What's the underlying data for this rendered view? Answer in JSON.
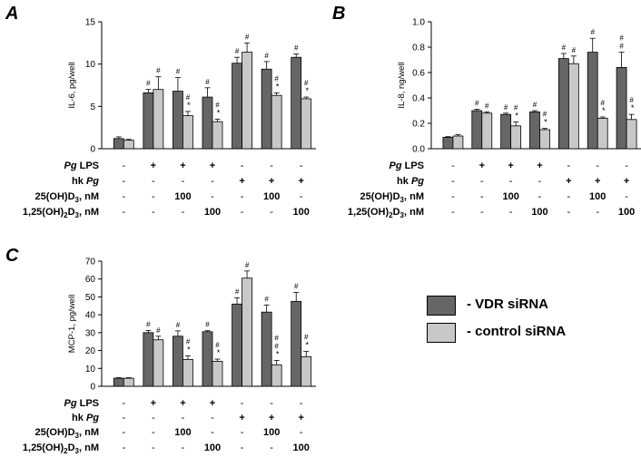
{
  "figure": {
    "legend": {
      "entries": [
        {
          "label": "- VDR siRNA",
          "color": "#666666"
        },
        {
          "label": "- control siRNA",
          "color": "#c8c8c8"
        }
      ]
    },
    "colors": {
      "vdr": "#666666",
      "control": "#c8c8c8",
      "axis": "#000000"
    }
  },
  "chart_data": [
    {
      "panel": "A",
      "type": "bar",
      "ylabel": "IL-6, pg/well",
      "ylim": [
        0,
        15
      ],
      "yticks": [
        "0",
        "5",
        "10",
        "15"
      ],
      "groups": 7,
      "series": [
        {
          "name": "VDR siRNA",
          "values": [
            1.2,
            6.6,
            6.8,
            6.1,
            10.1,
            9.4,
            10.8
          ],
          "errors": [
            0.2,
            0.4,
            1.6,
            1.1,
            0.7,
            0.9,
            0.4
          ]
        },
        {
          "name": "control siRNA",
          "values": [
            1.0,
            7.0,
            3.9,
            3.2,
            11.4,
            6.3,
            5.9
          ],
          "errors": [
            0.1,
            1.5,
            0.5,
            0.3,
            1.1,
            0.3,
            0.2
          ]
        }
      ],
      "annotations": {
        "vdr": [
          "",
          "#",
          "#",
          "#",
          "#",
          "#",
          "#"
        ],
        "control": [
          "",
          "#",
          "#\n*",
          "#\n*",
          "#",
          "#\n*",
          "#\n*"
        ]
      },
      "treatments": [
        {
          "label": "Pg LPS",
          "values": [
            "-",
            "+",
            "+",
            "+",
            "-",
            "-",
            "-"
          ]
        },
        {
          "label": "hk Pg",
          "values": [
            "-",
            "-",
            "-",
            "-",
            "+",
            "+",
            "+"
          ]
        },
        {
          "label": "25(OH)D3, nM",
          "values": [
            "-",
            "-",
            "100",
            "-",
            "-",
            "100",
            "-"
          ]
        },
        {
          "label": "1,25(OH)2D3, nM",
          "values": [
            "-",
            "-",
            "-",
            "100",
            "-",
            "-",
            "100"
          ]
        }
      ]
    },
    {
      "panel": "B",
      "type": "bar",
      "ylabel": "IL-8, ng/well",
      "ylim": [
        0,
        1.0
      ],
      "yticks": [
        "0.0",
        "0.2",
        "0.4",
        "0.6",
        "0.8",
        "1.0"
      ],
      "groups": 7,
      "series": [
        {
          "name": "VDR siRNA",
          "values": [
            0.09,
            0.3,
            0.27,
            0.29,
            0.71,
            0.76,
            0.64
          ],
          "errors": [
            0.005,
            0.01,
            0.01,
            0.01,
            0.04,
            0.11,
            0.12
          ]
        },
        {
          "name": "control siRNA",
          "values": [
            0.1,
            0.28,
            0.18,
            0.15,
            0.67,
            0.24,
            0.23
          ],
          "errors": [
            0.01,
            0.01,
            0.03,
            0.01,
            0.06,
            0.01,
            0.04
          ]
        }
      ],
      "annotations": {
        "vdr": [
          "",
          "#",
          "#",
          "#",
          "#",
          "#",
          "#\n#"
        ],
        "control": [
          "",
          "#",
          "#\n*",
          "#\n*",
          "#",
          "#\n*",
          "#\n*"
        ]
      },
      "treatments": [
        {
          "label": "Pg LPS",
          "values": [
            "-",
            "+",
            "+",
            "+",
            "-",
            "-",
            "-"
          ]
        },
        {
          "label": "hk Pg",
          "values": [
            "-",
            "-",
            "-",
            "-",
            "+",
            "+",
            "+"
          ]
        },
        {
          "label": "25(OH)D3, nM",
          "values": [
            "-",
            "-",
            "100",
            "-",
            "-",
            "100",
            "-"
          ]
        },
        {
          "label": "1,25(OH)2D3, nM",
          "values": [
            "-",
            "-",
            "-",
            "100",
            "-",
            "-",
            "100"
          ]
        }
      ]
    },
    {
      "panel": "C",
      "type": "bar",
      "ylabel": "MCP-1, pg/well",
      "ylim": [
        0,
        70
      ],
      "yticks": [
        "0",
        "10",
        "20",
        "30",
        "40",
        "50",
        "60",
        "70"
      ],
      "groups": 7,
      "series": [
        {
          "name": "VDR siRNA",
          "values": [
            4.5,
            30,
            28,
            30.5,
            46,
            41.5,
            47.5
          ],
          "errors": [
            0.3,
            1.2,
            3,
            0.6,
            3.5,
            4,
            5
          ]
        },
        {
          "name": "control siRNA",
          "values": [
            4.5,
            26,
            15,
            14,
            60.5,
            12,
            16.5
          ],
          "errors": [
            0.3,
            2,
            2,
            1.2,
            4,
            2.5,
            3
          ]
        }
      ],
      "annotations": {
        "vdr": [
          "",
          "#",
          "#",
          "#",
          "#",
          "#",
          "#"
        ],
        "control": [
          "",
          "#",
          "#\n*",
          "#\n*",
          "#",
          "#\n#\n*",
          "#\n*"
        ]
      },
      "treatments": [
        {
          "label": "Pg LPS",
          "values": [
            "-",
            "+",
            "+",
            "+",
            "-",
            "-",
            "-"
          ]
        },
        {
          "label": "hk Pg",
          "values": [
            "-",
            "-",
            "-",
            "-",
            "+",
            "+",
            "+"
          ]
        },
        {
          "label": "25(OH)D3, nM",
          "values": [
            "-",
            "-",
            "100",
            "-",
            "-",
            "100",
            "-"
          ]
        },
        {
          "label": "1,25(OH)2D3, nM",
          "values": [
            "-",
            "-",
            "-",
            "100",
            "-",
            "-",
            "100"
          ]
        }
      ]
    }
  ]
}
